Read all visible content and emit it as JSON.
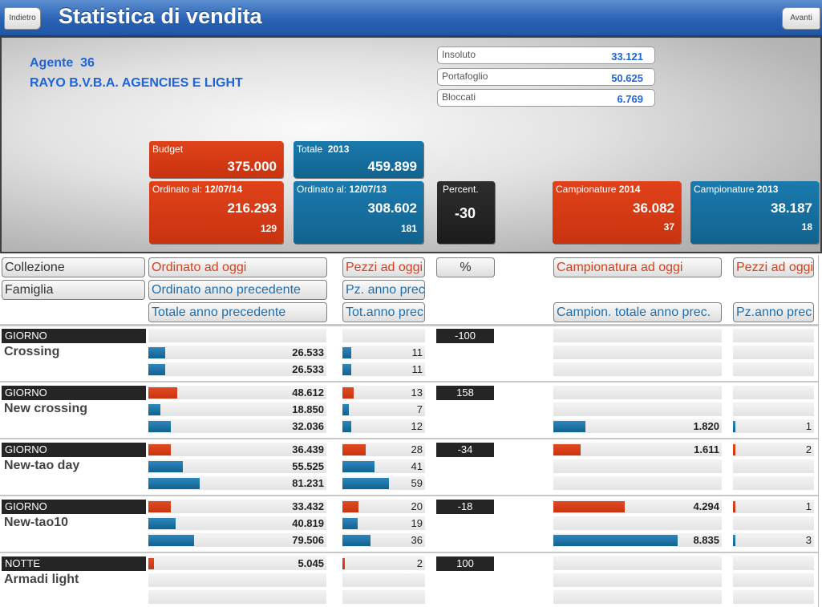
{
  "topbar": {
    "back_label": "Indietro",
    "title": "Statistica di vendita",
    "next_label": "Avanti"
  },
  "agent": {
    "label": "Agente",
    "code": "36",
    "name": "RAYO B.V.B.A. AGENCIES E LIGHT"
  },
  "balances": [
    {
      "label": "Insoluto",
      "value": "33.121"
    },
    {
      "label": "Portafoglio",
      "value": "50.625"
    },
    {
      "label": "Bloccati",
      "value": "6.769"
    }
  ],
  "budget": {
    "label": "Budget",
    "value": "375.000"
  },
  "totale": {
    "label": "Totale",
    "year": "2013",
    "value": "459.899"
  },
  "ordinato_current": {
    "label": "Ordinato al:",
    "date": "12/07/14",
    "value": "216.293",
    "count": "129"
  },
  "ordinato_prev": {
    "label": "Ordinato al:",
    "date": "12/07/13",
    "value": "308.602",
    "count": "181"
  },
  "percent": {
    "label": "Percent.",
    "value": "-30"
  },
  "camp_current": {
    "label": "Campionature",
    "year": "2014",
    "value": "36.082",
    "count": "37"
  },
  "camp_prev": {
    "label": "Campionature",
    "year": "2013",
    "value": "38.187",
    "count": "18"
  },
  "headers": {
    "collezione": "Collezione",
    "famiglia": "Famiglia",
    "ordinato_oggi": "Ordinato ad oggi",
    "ordinato_prec": "Ordinato anno precedente",
    "totale_prec": "Totale anno precedente",
    "pezzi_oggi": "Pezzi ad oggi",
    "pz_prec": "Pz. anno prec",
    "tot_prec": "Tot.anno prec",
    "percent": "%",
    "camp_oggi": "Campionatura ad oggi",
    "camp_tot_prec": "Campion. totale anno prec.",
    "pezzi_oggi_camp": "Pezzi ad oggi",
    "pz_anno_prec_camp": "Pz.anno prec"
  },
  "groups": [
    {
      "type": "GIORNO",
      "name": "Crossing",
      "percent": "-100",
      "ord": [
        {
          "v": "",
          "f": 0
        },
        {
          "v": "26.533",
          "f": 0.13
        },
        {
          "v": "26.533",
          "f": 0.13
        }
      ],
      "pz": [
        {
          "v": "",
          "f": 0
        },
        {
          "v": "11",
          "f": 0.15
        },
        {
          "v": "11",
          "f": 0.15
        }
      ],
      "camp": [
        {
          "v": "",
          "f": 0
        },
        {
          "v": "",
          "f": 0
        },
        {
          "v": "",
          "f": 0
        }
      ],
      "cpz": [
        {
          "v": "",
          "f": 0
        },
        {
          "v": "",
          "f": 0
        },
        {
          "v": "",
          "f": 0
        }
      ]
    },
    {
      "type": "GIORNO",
      "name": "New crossing",
      "percent": "158",
      "ord": [
        {
          "v": "48.612",
          "f": 0.22
        },
        {
          "v": "18.850",
          "f": 0.09
        },
        {
          "v": "32.036",
          "f": 0.17
        }
      ],
      "pz": [
        {
          "v": "13",
          "f": 0.19
        },
        {
          "v": "7",
          "f": 0.1
        },
        {
          "v": "12",
          "f": 0.15
        }
      ],
      "camp": [
        {
          "v": "",
          "f": 0
        },
        {
          "v": "",
          "f": 0
        },
        {
          "v": "1.820",
          "f": 0.26
        }
      ],
      "cpz": [
        {
          "v": "",
          "f": 0
        },
        {
          "v": "",
          "f": 0
        },
        {
          "v": "1",
          "f": 0.03
        }
      ]
    },
    {
      "type": "GIORNO",
      "name": "New-tao day",
      "percent": "-34",
      "ord": [
        {
          "v": "36.439",
          "f": 0.17
        },
        {
          "v": "55.525",
          "f": 0.26
        },
        {
          "v": "81.231",
          "f": 0.39
        }
      ],
      "pz": [
        {
          "v": "28",
          "f": 0.38
        },
        {
          "v": "41",
          "f": 0.53
        },
        {
          "v": "59",
          "f": 0.76
        }
      ],
      "camp": [
        {
          "v": "1.611",
          "f": 0.22
        },
        {
          "v": "",
          "f": 0
        },
        {
          "v": "",
          "f": 0
        }
      ],
      "cpz": [
        {
          "v": "2",
          "f": 0.04
        },
        {
          "v": "",
          "f": 0
        },
        {
          "v": "",
          "f": 0
        }
      ]
    },
    {
      "type": "GIORNO",
      "name": "New-tao10",
      "percent": "-18",
      "ord": [
        {
          "v": "33.432",
          "f": 0.17
        },
        {
          "v": "40.819",
          "f": 0.21
        },
        {
          "v": "79.506",
          "f": 0.35
        }
      ],
      "pz": [
        {
          "v": "20",
          "f": 0.26
        },
        {
          "v": "19",
          "f": 0.25
        },
        {
          "v": "36",
          "f": 0.46
        }
      ],
      "camp": [
        {
          "v": "4.294",
          "f": 0.57
        },
        {
          "v": "",
          "f": 0
        },
        {
          "v": "8.835",
          "f": 1.0
        }
      ],
      "cpz": [
        {
          "v": "1",
          "f": 0.03
        },
        {
          "v": "",
          "f": 0
        },
        {
          "v": "3",
          "f": 0.03
        }
      ]
    },
    {
      "type": "NOTTE",
      "name": "Armadi light",
      "percent": "100",
      "ord": [
        {
          "v": "5.045",
          "f": 0.04
        },
        {
          "v": "",
          "f": 0
        },
        {
          "v": "",
          "f": 0
        }
      ],
      "pz": [
        {
          "v": "2",
          "f": 0.03
        },
        {
          "v": "",
          "f": 0
        },
        {
          "v": "",
          "f": 0
        }
      ],
      "camp": [
        {
          "v": "",
          "f": 0
        },
        {
          "v": "",
          "f": 0
        },
        {
          "v": "",
          "f": 0
        }
      ],
      "cpz": [
        {
          "v": "",
          "f": 0
        },
        {
          "v": "",
          "f": 0
        },
        {
          "v": "",
          "f": 0
        }
      ]
    }
  ]
}
